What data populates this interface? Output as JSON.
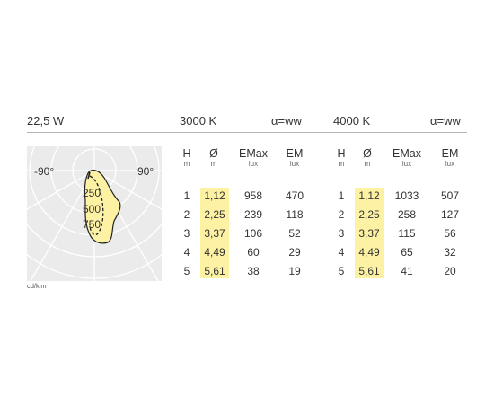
{
  "header": {
    "power": "22,5 W",
    "cct_left": "3000 K",
    "angle_left": "α=ww",
    "cct_right": "4000 K",
    "angle_right": "α=ww"
  },
  "diagram": {
    "label_left": "-90°",
    "label_right": "90°",
    "ring_labels": [
      "250",
      "500",
      "750"
    ],
    "unit": "cd/klm",
    "colors": {
      "background": "#ebebeb",
      "grid": "#ffffff",
      "distribution_fill": "#fdf2a4",
      "distribution_line": "#222222"
    }
  },
  "columns": {
    "h": {
      "label": "H",
      "unit": "m"
    },
    "d": {
      "label": "Ø",
      "unit": "m"
    },
    "emax": {
      "label": "EMax",
      "unit": "lux"
    },
    "em": {
      "label": "EM",
      "unit": "lux"
    }
  },
  "table_3000": [
    {
      "h": "1",
      "d": "1,12",
      "emax": "958",
      "em": "470"
    },
    {
      "h": "2",
      "d": "2,25",
      "emax": "239",
      "em": "118"
    },
    {
      "h": "3",
      "d": "3,37",
      "emax": "106",
      "em": "52"
    },
    {
      "h": "4",
      "d": "4,49",
      "emax": "60",
      "em": "29"
    },
    {
      "h": "5",
      "d": "5,61",
      "emax": "38",
      "em": "19"
    }
  ],
  "table_4000": [
    {
      "h": "1",
      "d": "1,12",
      "emax": "1033",
      "em": "507"
    },
    {
      "h": "2",
      "d": "2,25",
      "emax": "258",
      "em": "127"
    },
    {
      "h": "3",
      "d": "3,37",
      "emax": "115",
      "em": "56"
    },
    {
      "h": "4",
      "d": "4,49",
      "emax": "65",
      "em": "32"
    },
    {
      "h": "5",
      "d": "5,61",
      "emax": "41",
      "em": "20"
    }
  ],
  "highlight_color": "#fdf2a4"
}
